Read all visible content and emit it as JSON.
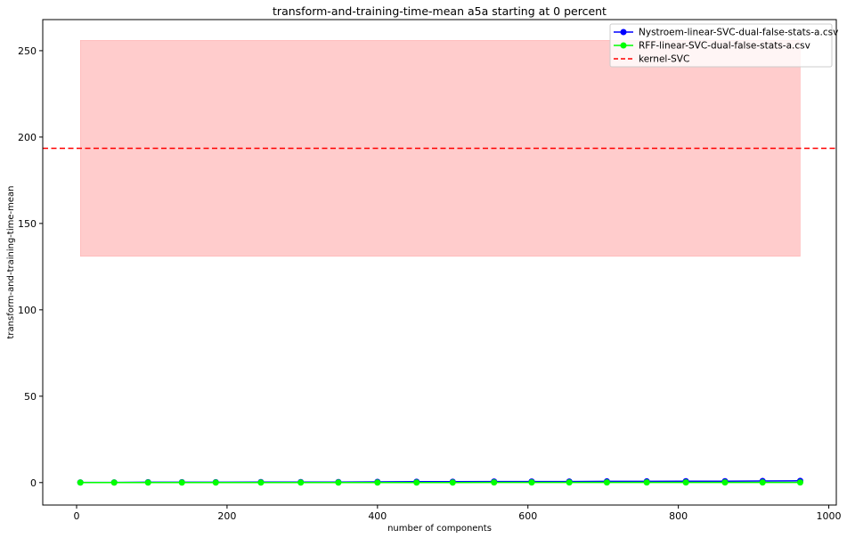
{
  "chart_data": {
    "type": "line",
    "title": "transform-and-training-time-mean a5a starting at 0 percent",
    "xlabel": "number of components",
    "ylabel": "transform-and-training-time-mean",
    "xlim": [
      -45,
      1010
    ],
    "ylim": [
      -13,
      268
    ],
    "xticks": [
      0,
      200,
      400,
      600,
      800,
      1000
    ],
    "yticks": [
      0,
      50,
      100,
      150,
      200,
      250
    ],
    "grid": false,
    "legend_position": "top-right",
    "series": [
      {
        "name": "Nystroem-linear-SVC-dual-false-stats-a.csv",
        "color": "#0000ff",
        "x": [
          5,
          50,
          95,
          140,
          185,
          245,
          298,
          348,
          400,
          452,
          500,
          555,
          605,
          655,
          705,
          758,
          810,
          862,
          912,
          962
        ],
        "y": [
          0.1,
          0.1,
          0.2,
          0.2,
          0.2,
          0.3,
          0.3,
          0.3,
          0.4,
          0.5,
          0.5,
          0.6,
          0.6,
          0.6,
          0.7,
          0.7,
          0.8,
          0.8,
          0.9,
          1.0
        ]
      },
      {
        "name": "RFF-linear-SVC-dual-false-stats-a.csv",
        "color": "#00ff00",
        "x": [
          5,
          50,
          95,
          140,
          185,
          245,
          298,
          348,
          400,
          452,
          500,
          555,
          605,
          655,
          705,
          758,
          810,
          862,
          912,
          962
        ],
        "y": [
          0.0,
          0.0,
          0.0,
          0.0,
          0.0,
          0.0,
          0.0,
          0.0,
          0.0,
          0.0,
          0.0,
          0.1,
          0.1,
          0.1,
          0.1,
          0.1,
          0.1,
          0.1,
          0.1,
          0.1
        ]
      }
    ],
    "reference_line": {
      "name": "kernel-SVC",
      "color": "#ff0000",
      "style": "dashed",
      "y": 193.5
    },
    "band": {
      "color": "#ff9999",
      "x": [
        5,
        962
      ],
      "y": [
        131,
        256
      ]
    }
  }
}
